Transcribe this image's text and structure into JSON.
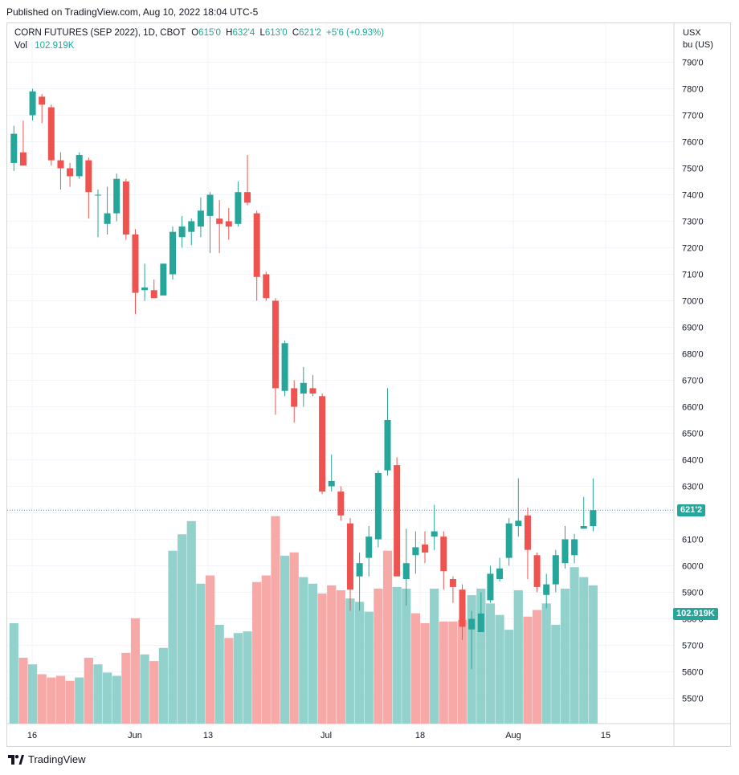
{
  "published": "Published on TradingView.com, Aug 10, 2022 18:04 UTC-5",
  "legend": {
    "symbol": "CORN FUTURES (SEP 2022), 1D, CBOT",
    "o_label": "O",
    "o_value": "615'0",
    "h_label": "H",
    "h_value": "632'4",
    "l_label": "L",
    "l_value": "613'0",
    "c_label": "C",
    "c_value": "621'2",
    "change": "+5'6 (+0.93%)",
    "vol_label": "Vol",
    "vol_value": "102.919K"
  },
  "currency": {
    "line1": "USX",
    "line2": "bu (US)"
  },
  "badges": {
    "price": "621'2",
    "volume": "102.919K"
  },
  "footer": {
    "brand": "TradingView"
  },
  "colors": {
    "up": "#26a69a",
    "down": "#ef5350",
    "vol_up": "#93d2cc",
    "vol_down": "#f7a9a7"
  },
  "chart_data": {
    "type": "candlestick",
    "title": "CORN FUTURES (SEP 2022), 1D, CBOT",
    "y_unit": "USX bu (US)",
    "ylim": [
      540,
      795
    ],
    "y_ticks": [
      "550'0",
      "560'0",
      "570'0",
      "580'0",
      "590'0",
      "600'0",
      "610'0",
      "620'0",
      "630'0",
      "640'0",
      "650'0",
      "660'0",
      "670'0",
      "680'0",
      "690'0",
      "700'0",
      "710'0",
      "720'0",
      "730'0",
      "740'0",
      "750'0",
      "760'0",
      "770'0",
      "780'0",
      "790'0"
    ],
    "x_ticks": [
      "16",
      "Jun",
      "13",
      "Jul",
      "18",
      "Aug",
      "15"
    ],
    "grid": true,
    "candles": [
      {
        "o": 752,
        "h": 766,
        "l": 749,
        "c": 763
      },
      {
        "o": 756,
        "h": 768,
        "l": 753,
        "c": 751
      },
      {
        "o": 770,
        "h": 780,
        "l": 768,
        "c": 779
      },
      {
        "o": 777,
        "h": 778,
        "l": 767,
        "c": 774
      },
      {
        "o": 773,
        "h": 774,
        "l": 751,
        "c": 753
      },
      {
        "o": 753,
        "h": 756,
        "l": 742,
        "c": 750
      },
      {
        "o": 750,
        "h": 752,
        "l": 743,
        "c": 747
      },
      {
        "o": 747,
        "h": 756,
        "l": 746,
        "c": 755
      },
      {
        "o": 753,
        "h": 754,
        "l": 731,
        "c": 741
      },
      {
        "o": 740,
        "h": 742,
        "l": 724,
        "c": 740
      },
      {
        "o": 729,
        "h": 743,
        "l": 725,
        "c": 733
      },
      {
        "o": 733,
        "h": 748,
        "l": 730,
        "c": 746
      },
      {
        "o": 745,
        "h": 746,
        "l": 723,
        "c": 725
      },
      {
        "o": 725,
        "h": 727,
        "l": 695,
        "c": 703
      },
      {
        "o": 704,
        "h": 714,
        "l": 700,
        "c": 705
      },
      {
        "o": 704,
        "h": 708,
        "l": 701,
        "c": 701
      },
      {
        "o": 702,
        "h": 714,
        "l": 702,
        "c": 714
      },
      {
        "o": 710,
        "h": 728,
        "l": 708,
        "c": 726
      },
      {
        "o": 724,
        "h": 732,
        "l": 720,
        "c": 728
      },
      {
        "o": 726,
        "h": 731,
        "l": 721,
        "c": 730
      },
      {
        "o": 728,
        "h": 739,
        "l": 724,
        "c": 734
      },
      {
        "o": 732,
        "h": 741,
        "l": 718,
        "c": 740
      },
      {
        "o": 731,
        "h": 738,
        "l": 718,
        "c": 729
      },
      {
        "o": 730,
        "h": 735,
        "l": 723,
        "c": 728
      },
      {
        "o": 729,
        "h": 745,
        "l": 728,
        "c": 741
      },
      {
        "o": 741,
        "h": 755,
        "l": 736,
        "c": 737
      },
      {
        "o": 733,
        "h": 734,
        "l": 700,
        "c": 709
      },
      {
        "o": 710,
        "h": 711,
        "l": 700,
        "c": 701
      },
      {
        "o": 700,
        "h": 701,
        "l": 657,
        "c": 667
      },
      {
        "o": 666,
        "h": 685,
        "l": 664,
        "c": 684
      },
      {
        "o": 667,
        "h": 670,
        "l": 654,
        "c": 660
      },
      {
        "o": 665,
        "h": 675,
        "l": 660,
        "c": 669
      },
      {
        "o": 667,
        "h": 672,
        "l": 664,
        "c": 665
      },
      {
        "o": 664,
        "h": 665,
        "l": 627,
        "c": 628
      },
      {
        "o": 630,
        "h": 642,
        "l": 628,
        "c": 632
      },
      {
        "o": 628,
        "h": 630,
        "l": 617,
        "c": 619
      },
      {
        "o": 616,
        "h": 618,
        "l": 583,
        "c": 591
      },
      {
        "o": 596,
        "h": 605,
        "l": 583,
        "c": 601
      },
      {
        "o": 603,
        "h": 615,
        "l": 596,
        "c": 611
      },
      {
        "o": 610,
        "h": 636,
        "l": 607,
        "c": 635
      },
      {
        "o": 636,
        "h": 667,
        "l": 634,
        "c": 655
      },
      {
        "o": 638,
        "h": 641,
        "l": 597,
        "c": 596
      },
      {
        "o": 595,
        "h": 614,
        "l": 585,
        "c": 601
      },
      {
        "o": 604,
        "h": 613,
        "l": 597,
        "c": 607
      },
      {
        "o": 608,
        "h": 613,
        "l": 601,
        "c": 605
      },
      {
        "o": 611,
        "h": 623,
        "l": 606,
        "c": 613
      },
      {
        "o": 611,
        "h": 613,
        "l": 591,
        "c": 598
      },
      {
        "o": 595,
        "h": 596,
        "l": 586,
        "c": 592
      },
      {
        "o": 591,
        "h": 593,
        "l": 572,
        "c": 577
      },
      {
        "o": 576,
        "h": 583,
        "l": 561,
        "c": 580
      },
      {
        "o": 575,
        "h": 590,
        "l": 575,
        "c": 582
      },
      {
        "o": 587,
        "h": 600,
        "l": 586,
        "c": 597
      },
      {
        "o": 595,
        "h": 603,
        "l": 594,
        "c": 599
      },
      {
        "o": 603,
        "h": 618,
        "l": 600,
        "c": 616
      },
      {
        "o": 615,
        "h": 633,
        "l": 611,
        "c": 617
      },
      {
        "o": 619,
        "h": 622,
        "l": 595,
        "c": 606
      },
      {
        "o": 604,
        "h": 605,
        "l": 590,
        "c": 592
      },
      {
        "o": 589,
        "h": 597,
        "l": 584,
        "c": 593
      },
      {
        "o": 593,
        "h": 606,
        "l": 590,
        "c": 604
      },
      {
        "o": 601,
        "h": 615,
        "l": 599,
        "c": 610
      },
      {
        "o": 604,
        "h": 612,
        "l": 601,
        "c": 610
      },
      {
        "o": 614,
        "h": 626,
        "l": 614,
        "c": 615
      },
      {
        "o": 615,
        "h": 633,
        "l": 613,
        "c": 621
      }
    ],
    "volume": [
      {
        "v": 0.61,
        "up": true
      },
      {
        "v": 0.4,
        "up": false
      },
      {
        "v": 0.36,
        "up": true
      },
      {
        "v": 0.3,
        "up": false
      },
      {
        "v": 0.28,
        "up": false
      },
      {
        "v": 0.29,
        "up": false
      },
      {
        "v": 0.26,
        "up": false
      },
      {
        "v": 0.28,
        "up": true
      },
      {
        "v": 0.4,
        "up": false
      },
      {
        "v": 0.36,
        "up": true
      },
      {
        "v": 0.31,
        "up": true
      },
      {
        "v": 0.29,
        "up": true
      },
      {
        "v": 0.43,
        "up": false
      },
      {
        "v": 0.64,
        "up": false
      },
      {
        "v": 0.42,
        "up": true
      },
      {
        "v": 0.38,
        "up": false
      },
      {
        "v": 0.46,
        "up": true
      },
      {
        "v": 1.05,
        "up": true
      },
      {
        "v": 1.15,
        "up": true
      },
      {
        "v": 1.23,
        "up": true
      },
      {
        "v": 0.85,
        "up": true
      },
      {
        "v": 0.9,
        "up": false
      },
      {
        "v": 0.6,
        "up": true
      },
      {
        "v": 0.52,
        "up": false
      },
      {
        "v": 0.55,
        "up": true
      },
      {
        "v": 0.56,
        "up": true
      },
      {
        "v": 0.86,
        "up": false
      },
      {
        "v": 0.9,
        "up": false
      },
      {
        "v": 1.26,
        "up": false
      },
      {
        "v": 1.02,
        "up": true
      },
      {
        "v": 1.04,
        "up": false
      },
      {
        "v": 0.89,
        "up": true
      },
      {
        "v": 0.85,
        "up": true
      },
      {
        "v": 0.79,
        "up": false
      },
      {
        "v": 0.84,
        "up": false
      },
      {
        "v": 0.81,
        "up": false
      },
      {
        "v": 0.76,
        "up": true
      },
      {
        "v": 0.74,
        "up": true
      },
      {
        "v": 0.68,
        "up": true
      },
      {
        "v": 0.82,
        "up": false
      },
      {
        "v": 1.05,
        "up": false
      },
      {
        "v": 0.83,
        "up": true
      },
      {
        "v": 0.82,
        "up": true
      },
      {
        "v": 0.67,
        "up": false
      },
      {
        "v": 0.61,
        "up": false
      },
      {
        "v": 0.82,
        "up": true
      },
      {
        "v": 0.62,
        "up": false
      },
      {
        "v": 0.62,
        "up": false
      },
      {
        "v": 0.63,
        "up": false
      },
      {
        "v": 0.78,
        "up": true
      },
      {
        "v": 0.82,
        "up": true
      },
      {
        "v": 0.73,
        "up": true
      },
      {
        "v": 0.66,
        "up": true
      },
      {
        "v": 0.57,
        "up": true
      },
      {
        "v": 0.81,
        "up": true
      },
      {
        "v": 0.65,
        "up": false
      },
      {
        "v": 0.69,
        "up": false
      },
      {
        "v": 0.73,
        "up": true
      },
      {
        "v": 0.6,
        "up": true
      },
      {
        "v": 0.82,
        "up": true
      },
      {
        "v": 0.95,
        "up": true
      },
      {
        "v": 0.89,
        "up": true
      },
      {
        "v": 0.84,
        "up": true
      }
    ]
  }
}
